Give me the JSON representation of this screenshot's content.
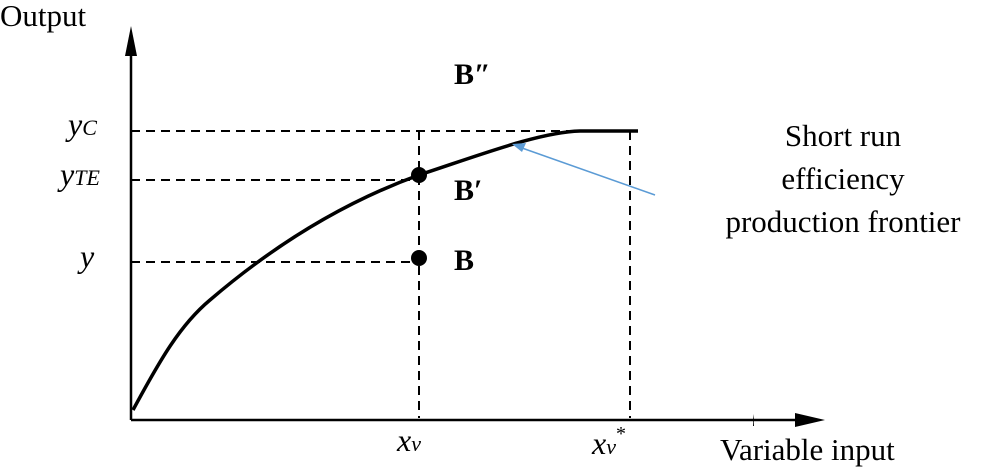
{
  "axes": {
    "y_label": "Output",
    "x_label": "Variable input"
  },
  "y_ticks": [
    {
      "main": "y",
      "sub": "C"
    },
    {
      "main": "y",
      "sub": "TE"
    },
    {
      "main": "y",
      "sub": ""
    }
  ],
  "x_ticks": [
    {
      "main": "x",
      "sub": "v",
      "sup": ""
    },
    {
      "main": "x",
      "sub": "v",
      "sup": "*"
    }
  ],
  "points": {
    "b_double_prime": "B″",
    "b_prime": "B′",
    "b": "B"
  },
  "annotation": {
    "lines": [
      "Short run",
      "efficiency",
      "production frontier"
    ],
    "arrow_color": "#5b9bd5"
  }
}
